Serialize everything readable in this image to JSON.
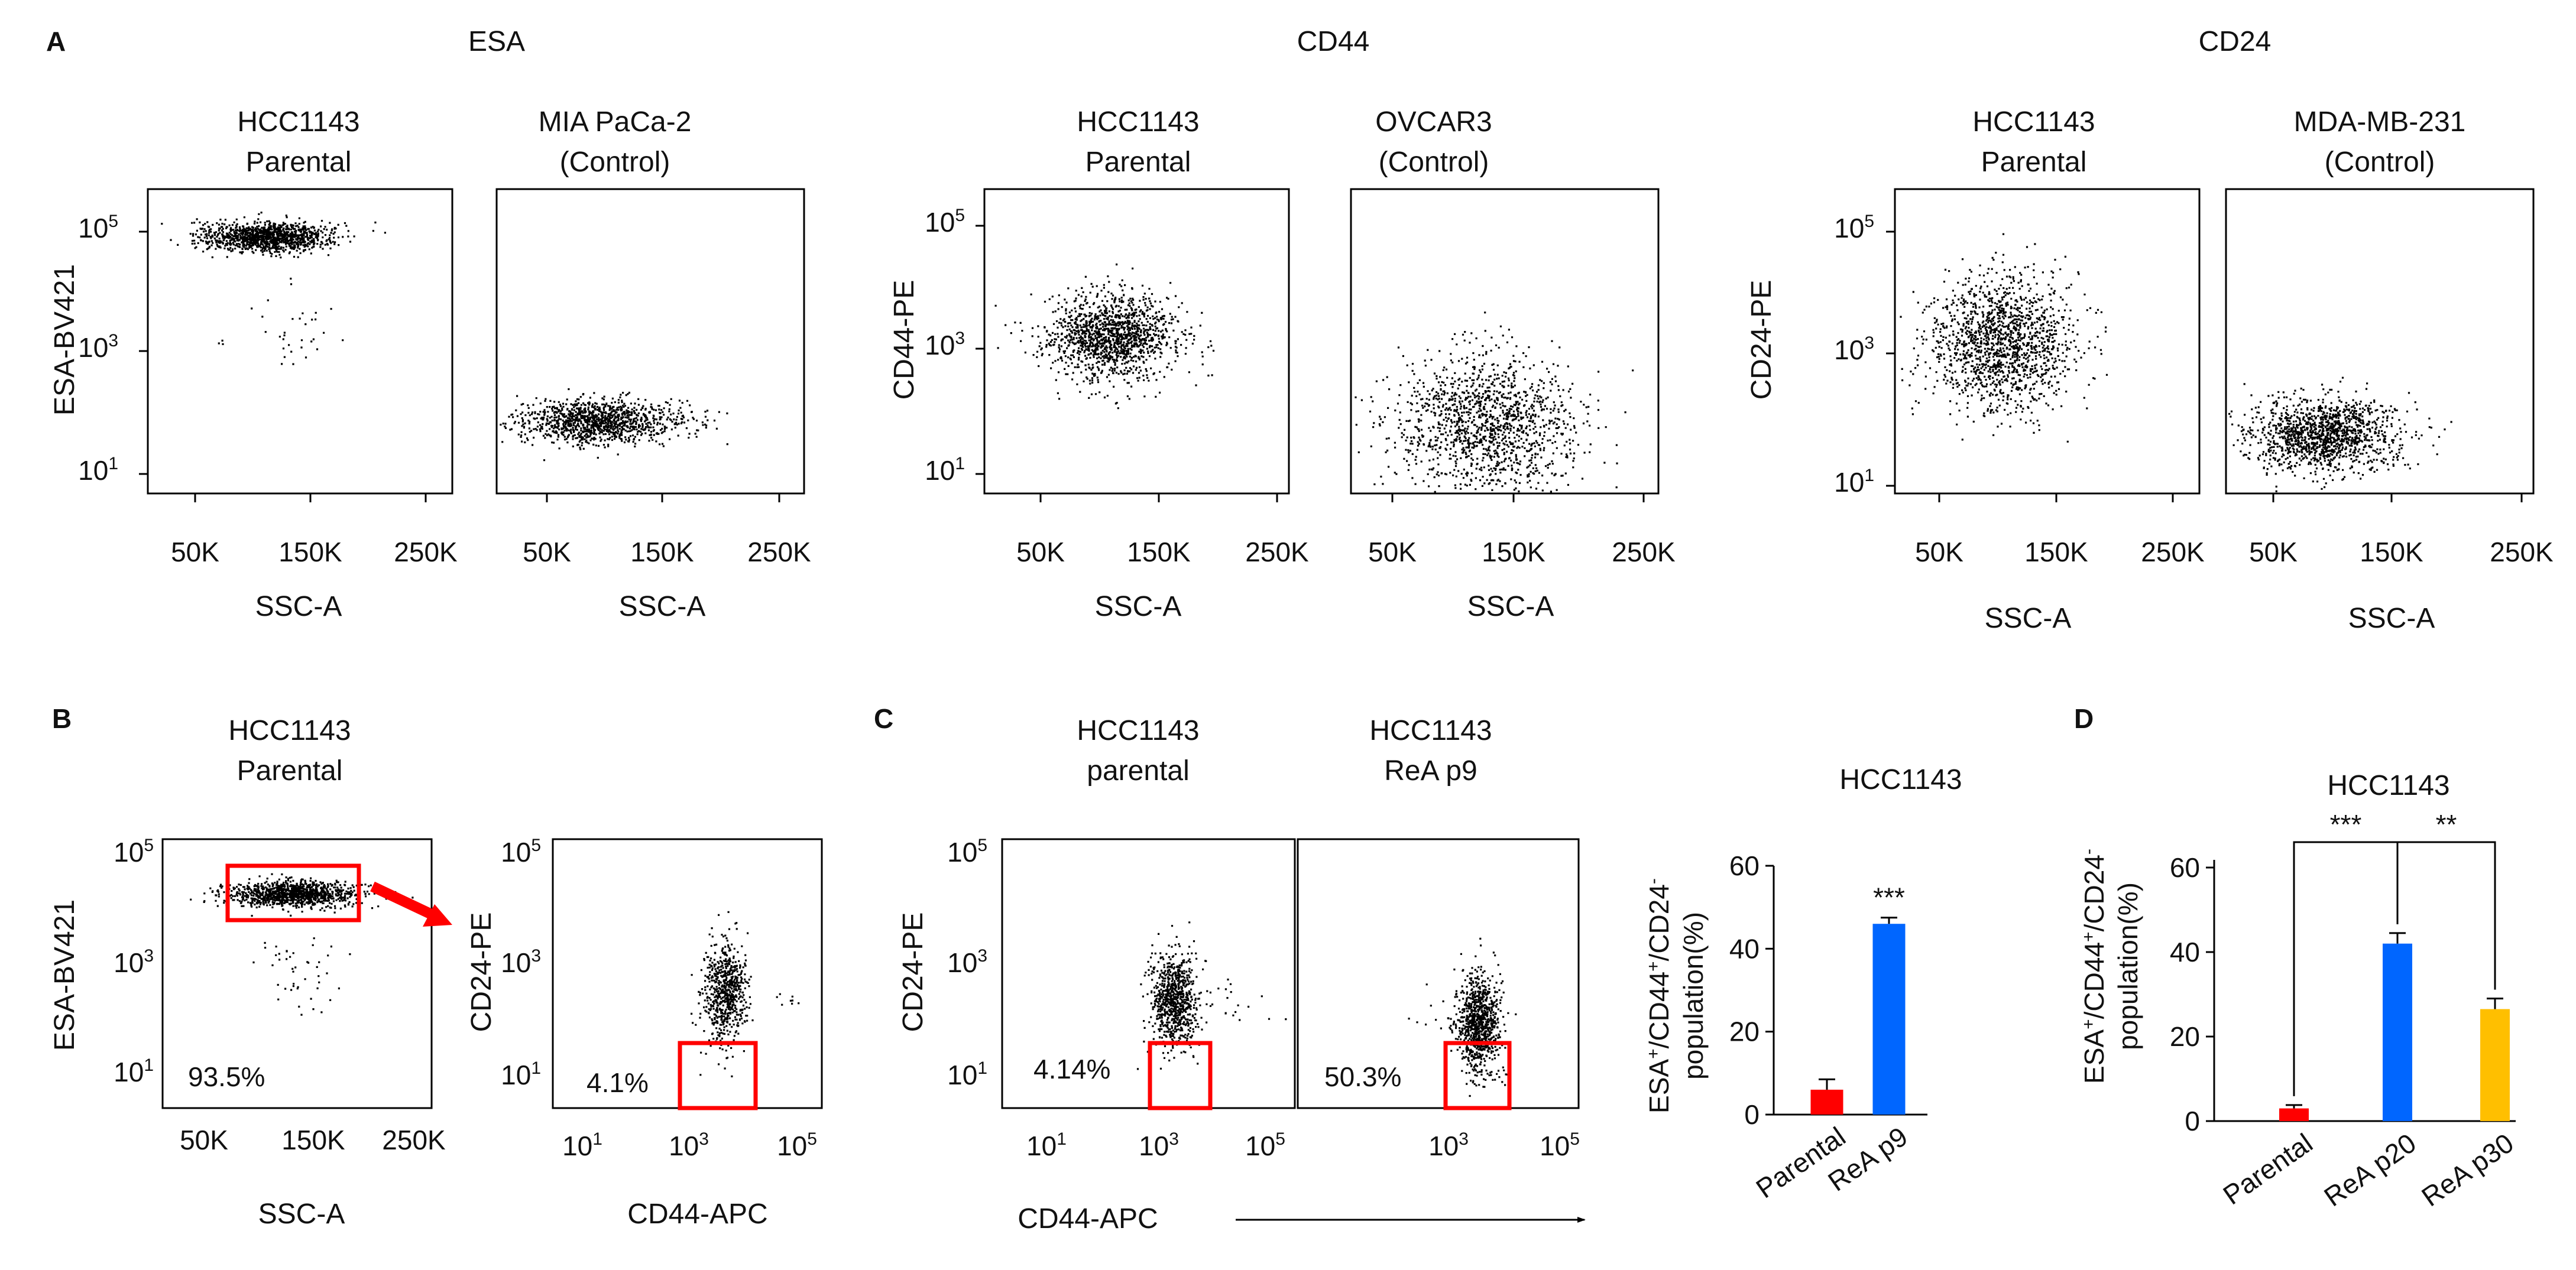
{
  "panel_letters": {
    "a": "A",
    "b": "B",
    "c": "C",
    "d": "D"
  },
  "section_titles": {
    "esa": "ESA",
    "cd44": "CD44",
    "cd24": "CD24"
  },
  "plots": {
    "esa_p": {
      "l1": "HCC1143",
      "l2": "Parental"
    },
    "esa_c": {
      "l1": "MIA PaCa-2",
      "l2": "(Control)"
    },
    "cd44_p": {
      "l1": "HCC1143",
      "l2": "Parental"
    },
    "cd44_c": {
      "l1": "OVCAR3",
      "l2": "(Control)"
    },
    "cd24_p": {
      "l1": "HCC1143",
      "l2": "Parental"
    },
    "cd24_c": {
      "l1": "MDA-MB-231",
      "l2": "(Control)"
    },
    "b1": {
      "l1": "HCC1143",
      "l2": "Parental"
    },
    "c1": {
      "l1": "HCC1143",
      "l2": "parental"
    },
    "c2": {
      "l1": "HCC1143",
      "l2": "ReA p9"
    }
  },
  "axes": {
    "ssc": "SSC-A",
    "esa": "ESA-BV421",
    "cd44pe": "CD44-PE",
    "cd24pe": "CD24-PE",
    "cd44apc": "CD44-APC",
    "ssc_ticks": [
      "50K",
      "150K",
      "250K"
    ],
    "log_base": "10",
    "log_exps": [
      "1",
      "3",
      "5"
    ]
  },
  "gates": {
    "b1": "93.5%",
    "b2": "4.1%",
    "c1": "4.14%",
    "c2": "50.3%"
  },
  "colors": {
    "parental": "#ff0000",
    "p9": "#0066ff",
    "p20": "#0066ff",
    "p30": "#ffbf00",
    "gate": "#ff0000",
    "dots": "#000000"
  },
  "chart_data": [
    {
      "type": "bar",
      "title": "HCC1143",
      "ylabel_parts": [
        "ESA",
        "+",
        "/CD44",
        "+",
        "/CD24",
        "-"
      ],
      "ylabel_line2": "population(%)",
      "categories": [
        "Parental",
        "ReA p9"
      ],
      "values": [
        6,
        46
      ],
      "errors": [
        2.5,
        1.5
      ],
      "yticks": [
        "0",
        "20",
        "40",
        "60"
      ],
      "ylim": [
        0,
        60
      ],
      "significance": [
        "",
        "***"
      ]
    },
    {
      "type": "bar",
      "title": "HCC1143",
      "ylabel_parts": [
        "ESA",
        "+",
        "/CD44",
        "+",
        "/CD24",
        "-"
      ],
      "ylabel_line2": "population(%)",
      "categories": [
        "Parental",
        "ReA p20",
        "ReA p30"
      ],
      "values": [
        3,
        42,
        26.5
      ],
      "errors": [
        0.8,
        2.5,
        2.5
      ],
      "yticks": [
        "0",
        "20",
        "40",
        "60"
      ],
      "ylim": [
        0,
        60
      ],
      "comparisons": [
        {
          "from": 0,
          "to": 1,
          "label": "***"
        },
        {
          "from": 1,
          "to": 2,
          "label": "**"
        }
      ]
    }
  ]
}
